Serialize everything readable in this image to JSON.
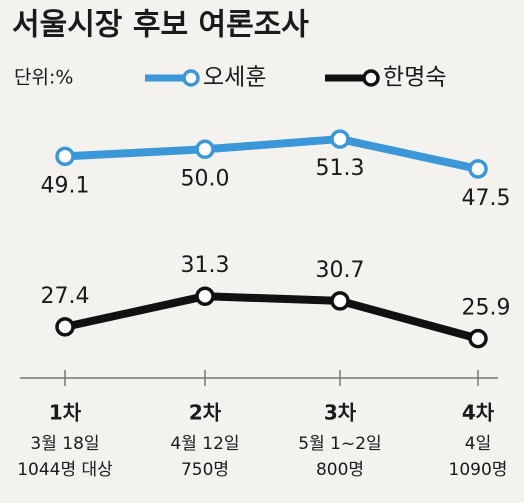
{
  "chart_data": {
    "type": "line",
    "title": "서울시장 후보 여론조사",
    "unit": "단위:%",
    "categories": [
      "1차",
      "2차",
      "3차",
      "4차"
    ],
    "category_details": [
      [
        "3월 18일",
        "1044명 대상"
      ],
      [
        "4월 12일",
        "750명"
      ],
      [
        "5월 1~2일",
        "800명"
      ],
      [
        "4일",
        "1090명"
      ]
    ],
    "ylim": [
      20,
      55
    ],
    "series": [
      {
        "name": "오세훈",
        "color": "#3b97d8",
        "values": [
          49.1,
          50.0,
          51.3,
          47.5
        ],
        "value_labels": [
          "49.1",
          "50.0",
          "51.3",
          "47.5"
        ]
      },
      {
        "name": "한명숙",
        "color": "#111111",
        "values": [
          27.4,
          31.3,
          30.7,
          25.9
        ],
        "value_labels": [
          "27.4",
          "31.3",
          "30.7",
          "25.9"
        ]
      }
    ]
  }
}
